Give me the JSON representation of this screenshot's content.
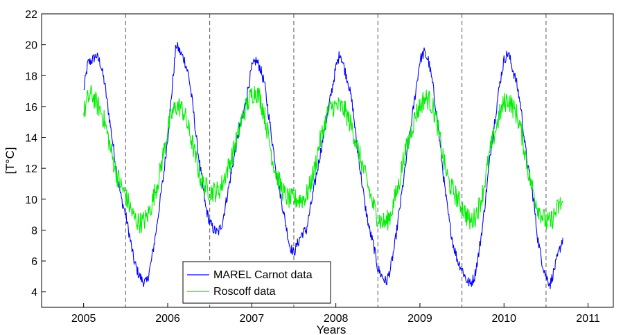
{
  "chart_data": {
    "type": "line",
    "xlabel": "Years",
    "ylabel": "[T°C]",
    "xlim": [
      2004.5,
      2011.3
    ],
    "ylim": [
      3,
      22
    ],
    "x_ticks": [
      2005,
      2006,
      2007,
      2008,
      2009,
      2010,
      2011
    ],
    "y_ticks": [
      4,
      6,
      8,
      10,
      12,
      14,
      16,
      18,
      20,
      22
    ],
    "legend_position": "bottom-center",
    "grid": false,
    "vertical_reference_lines": [
      2005.5,
      2006.5,
      2007.5,
      2008.5,
      2009.5,
      2010.5
    ],
    "series": [
      {
        "name": "MAREL Carnot data",
        "color": "#0000ff",
        "noise": 0.35,
        "x": [
          2005.0,
          2005.05,
          2005.1,
          2005.15,
          2005.2,
          2005.25,
          2005.3,
          2005.35,
          2005.4,
          2005.45,
          2005.5,
          2005.55,
          2005.6,
          2005.65,
          2005.7,
          2005.75,
          2005.8,
          2005.85,
          2005.9,
          2005.95,
          2006.0,
          2006.05,
          2006.1,
          2006.15,
          2006.2,
          2006.25,
          2006.3,
          2006.35,
          2006.4,
          2006.45,
          2006.5,
          2006.55,
          2006.6,
          2006.65,
          2006.7,
          2006.75,
          2006.8,
          2006.85,
          2006.9,
          2006.95,
          2007.0,
          2007.05,
          2007.1,
          2007.15,
          2007.2,
          2007.25,
          2007.3,
          2007.35,
          2007.4,
          2007.45,
          2007.5,
          2007.55,
          2007.6,
          2007.65,
          2007.7,
          2007.75,
          2007.8,
          2007.85,
          2007.9,
          2007.95,
          2008.0,
          2008.05,
          2008.1,
          2008.15,
          2008.2,
          2008.25,
          2008.3,
          2008.35,
          2008.4,
          2008.45,
          2008.5,
          2008.55,
          2008.6,
          2008.65,
          2008.7,
          2008.75,
          2008.8,
          2008.85,
          2008.9,
          2008.95,
          2009.0,
          2009.05,
          2009.1,
          2009.15,
          2009.2,
          2009.25,
          2009.3,
          2009.35,
          2009.4,
          2009.45,
          2009.5,
          2009.55,
          2009.6,
          2009.65,
          2009.7,
          2009.75,
          2009.8,
          2009.85,
          2009.9,
          2009.95,
          2010.0,
          2010.05,
          2010.1,
          2010.15,
          2010.2,
          2010.25,
          2010.3,
          2010.35,
          2010.4,
          2010.45,
          2010.5,
          2010.55,
          2010.6,
          2010.65,
          2010.7
        ],
        "values": [
          17.0,
          18.8,
          19.0,
          19.3,
          18.8,
          17.5,
          15.5,
          13.5,
          11.5,
          10.0,
          9.0,
          7.5,
          6.0,
          5.2,
          4.7,
          4.6,
          5.8,
          7.5,
          9.5,
          11.5,
          14.0,
          17.0,
          20.0,
          19.5,
          19.0,
          18.0,
          16.0,
          13.5,
          11.5,
          9.5,
          8.5,
          8.0,
          7.8,
          8.5,
          10.0,
          11.5,
          13.0,
          14.5,
          15.5,
          17.0,
          18.5,
          19.0,
          18.5,
          17.5,
          15.5,
          13.5,
          11.5,
          10.0,
          8.5,
          7.0,
          6.5,
          7.2,
          7.8,
          8.0,
          9.5,
          11.0,
          12.5,
          14.0,
          15.5,
          17.0,
          18.5,
          19.5,
          18.5,
          17.5,
          16.0,
          13.5,
          11.5,
          9.5,
          8.0,
          7.0,
          5.5,
          5.0,
          4.6,
          5.5,
          7.0,
          9.0,
          11.0,
          13.0,
          15.0,
          17.0,
          19.0,
          19.5,
          19.0,
          17.5,
          15.5,
          13.0,
          10.5,
          8.5,
          7.0,
          6.0,
          5.5,
          4.8,
          4.5,
          5.0,
          6.5,
          8.5,
          11.0,
          13.5,
          15.5,
          17.5,
          19.0,
          19.5,
          18.5,
          17.5,
          16.0,
          13.5,
          11.5,
          10.0,
          7.5,
          6.0,
          5.0,
          4.5,
          5.5,
          6.5,
          7.5
        ]
      },
      {
        "name": "Roscoff data",
        "color": "#00ee00",
        "noise": 0.7,
        "x": [
          2005.0,
          2005.05,
          2005.1,
          2005.15,
          2005.2,
          2005.25,
          2005.3,
          2005.35,
          2005.4,
          2005.45,
          2005.5,
          2005.55,
          2005.6,
          2005.65,
          2005.7,
          2005.75,
          2005.8,
          2005.85,
          2005.9,
          2005.95,
          2006.0,
          2006.05,
          2006.1,
          2006.15,
          2006.2,
          2006.25,
          2006.3,
          2006.35,
          2006.4,
          2006.45,
          2006.5,
          2006.55,
          2006.6,
          2006.65,
          2006.7,
          2006.75,
          2006.8,
          2006.85,
          2006.9,
          2006.95,
          2007.0,
          2007.05,
          2007.1,
          2007.15,
          2007.2,
          2007.25,
          2007.3,
          2007.35,
          2007.4,
          2007.45,
          2007.5,
          2007.55,
          2007.6,
          2007.65,
          2007.7,
          2007.75,
          2007.8,
          2007.85,
          2007.9,
          2007.95,
          2008.0,
          2008.05,
          2008.1,
          2008.15,
          2008.2,
          2008.25,
          2008.3,
          2008.35,
          2008.4,
          2008.45,
          2008.5,
          2008.55,
          2008.6,
          2008.65,
          2008.7,
          2008.75,
          2008.8,
          2008.85,
          2008.9,
          2008.95,
          2009.0,
          2009.05,
          2009.1,
          2009.15,
          2009.2,
          2009.25,
          2009.3,
          2009.35,
          2009.4,
          2009.45,
          2009.5,
          2009.55,
          2009.6,
          2009.65,
          2009.7,
          2009.75,
          2009.8,
          2009.85,
          2009.9,
          2009.95,
          2010.0,
          2010.05,
          2010.1,
          2010.15,
          2010.2,
          2010.25,
          2010.3,
          2010.35,
          2010.4,
          2010.45,
          2010.5,
          2010.55,
          2010.6,
          2010.65,
          2010.7
        ],
        "values": [
          15.5,
          16.5,
          16.8,
          16.2,
          15.8,
          15.0,
          13.8,
          12.5,
          11.5,
          10.8,
          10.2,
          9.5,
          8.8,
          8.5,
          8.5,
          8.8,
          9.5,
          10.5,
          11.5,
          13.0,
          14.5,
          15.5,
          16.0,
          16.0,
          15.5,
          14.5,
          13.5,
          12.2,
          11.2,
          10.8,
          10.5,
          10.5,
          10.5,
          11.0,
          11.8,
          12.5,
          13.5,
          14.5,
          15.5,
          16.2,
          16.8,
          17.0,
          16.5,
          15.5,
          14.0,
          12.5,
          11.5,
          10.8,
          10.2,
          10.0,
          10.0,
          10.0,
          10.0,
          10.2,
          11.0,
          12.0,
          13.5,
          14.5,
          15.5,
          16.0,
          16.0,
          16.0,
          15.8,
          15.2,
          14.5,
          13.5,
          12.5,
          11.5,
          10.5,
          9.5,
          8.8,
          8.5,
          8.5,
          9.0,
          10.0,
          11.0,
          12.5,
          13.5,
          14.5,
          15.5,
          16.0,
          16.5,
          16.5,
          16.0,
          15.0,
          13.5,
          12.0,
          11.0,
          10.5,
          10.0,
          9.5,
          9.0,
          8.5,
          8.8,
          9.5,
          10.5,
          12.0,
          13.5,
          14.5,
          15.5,
          16.2,
          16.5,
          16.0,
          15.5,
          14.5,
          13.0,
          11.5,
          10.5,
          9.5,
          9.0,
          8.5,
          8.5,
          9.0,
          9.5,
          9.8
        ]
      }
    ]
  }
}
